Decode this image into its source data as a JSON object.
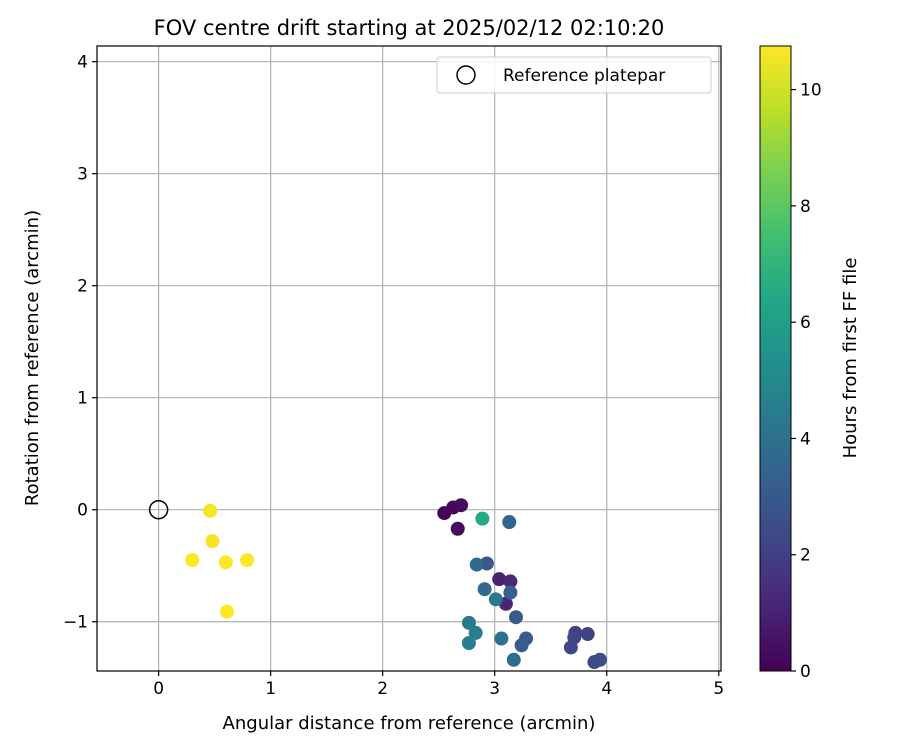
{
  "chart_data": {
    "type": "scatter",
    "title": "FOV centre drift starting at 2025/02/12 02:10:20",
    "xlabel": "Angular distance from reference (arcmin)",
    "ylabel": "Rotation from reference (arcmin)",
    "xlim": [
      -0.55,
      5.02
    ],
    "ylim": [
      -1.44,
      4.14
    ],
    "xticks": [
      0,
      1,
      2,
      3,
      4,
      5
    ],
    "xtick_labels": [
      "0",
      "1",
      "2",
      "3",
      "4",
      "5"
    ],
    "yticks": [
      -1,
      0,
      1,
      2,
      3,
      4
    ],
    "ytick_labels": [
      "−1",
      "0",
      "1",
      "2",
      "3",
      "4"
    ],
    "grid": true,
    "legend": {
      "placement": "top-right",
      "entries": [
        "Reference platepar"
      ]
    },
    "reference_point": {
      "x": 0,
      "y": 0,
      "label": "Reference platepar"
    },
    "colorbar": {
      "label": "Hours from first FF file",
      "min": 0,
      "max": 10.75,
      "ticks": [
        0,
        2,
        4,
        6,
        8,
        10
      ],
      "tick_labels": [
        "0",
        "2",
        "4",
        "6",
        "8",
        "10"
      ],
      "colormap": "viridis"
    },
    "points": [
      {
        "x": 2.55,
        "y": -0.03,
        "c": 0.1
      },
      {
        "x": 2.63,
        "y": 0.02,
        "c": 0.2
      },
      {
        "x": 2.7,
        "y": 0.04,
        "c": 0.3
      },
      {
        "x": 2.67,
        "y": -0.17,
        "c": 0.35
      },
      {
        "x": 3.04,
        "y": -0.62,
        "c": 1.0
      },
      {
        "x": 3.1,
        "y": -0.84,
        "c": 1.1
      },
      {
        "x": 3.14,
        "y": -0.64,
        "c": 1.3
      },
      {
        "x": 3.72,
        "y": -1.1,
        "c": 2.0
      },
      {
        "x": 3.83,
        "y": -1.11,
        "c": 2.1
      },
      {
        "x": 3.71,
        "y": -1.14,
        "c": 2.2
      },
      {
        "x": 3.68,
        "y": -1.23,
        "c": 2.3
      },
      {
        "x": 3.89,
        "y": -1.36,
        "c": 2.4
      },
      {
        "x": 3.94,
        "y": -1.34,
        "c": 2.5
      },
      {
        "x": 2.93,
        "y": -0.48,
        "c": 2.9
      },
      {
        "x": 3.19,
        "y": -0.96,
        "c": 3.0
      },
      {
        "x": 3.28,
        "y": -1.15,
        "c": 3.1
      },
      {
        "x": 3.24,
        "y": -1.21,
        "c": 3.2
      },
      {
        "x": 3.14,
        "y": -0.74,
        "c": 3.3
      },
      {
        "x": 3.13,
        "y": -0.11,
        "c": 3.5
      },
      {
        "x": 2.84,
        "y": -0.49,
        "c": 3.6
      },
      {
        "x": 2.91,
        "y": -0.71,
        "c": 3.7
      },
      {
        "x": 3.17,
        "y": -1.34,
        "c": 3.8
      },
      {
        "x": 3.06,
        "y": -1.15,
        "c": 4.0
      },
      {
        "x": 3.01,
        "y": -0.8,
        "c": 4.3
      },
      {
        "x": 2.77,
        "y": -1.01,
        "c": 4.4
      },
      {
        "x": 2.83,
        "y": -1.1,
        "c": 4.5
      },
      {
        "x": 2.77,
        "y": -1.19,
        "c": 4.6
      },
      {
        "x": 2.89,
        "y": -0.08,
        "c": 6.5
      },
      {
        "x": 0.46,
        "y": -0.01,
        "c": 10.6
      },
      {
        "x": 0.48,
        "y": -0.28,
        "c": 10.6
      },
      {
        "x": 0.3,
        "y": -0.45,
        "c": 10.7
      },
      {
        "x": 0.6,
        "y": -0.47,
        "c": 10.7
      },
      {
        "x": 0.79,
        "y": -0.45,
        "c": 10.7
      },
      {
        "x": 0.61,
        "y": -0.91,
        "c": 10.75
      }
    ]
  }
}
